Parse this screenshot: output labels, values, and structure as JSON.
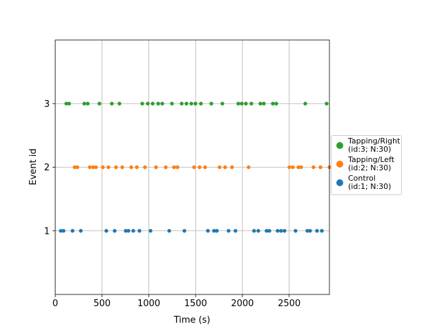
{
  "chart_data": {
    "type": "scatter",
    "xlabel": "Time (s)",
    "ylabel": "Event id",
    "xlim": [
      0,
      2930
    ],
    "xticks": [
      0,
      500,
      1000,
      1500,
      2000,
      2500
    ],
    "ylim": [
      0,
      4
    ],
    "yticks": [
      1,
      2,
      3
    ],
    "grid": true,
    "legend": "right",
    "series": [
      {
        "name": "Tapping/Right\n(id:3; N:30)",
        "color": "#2ca02c",
        "x": [
          118,
          148,
          310,
          347,
          472,
          605,
          686,
          930,
          989,
          1041,
          1100,
          1144,
          1247,
          1351,
          1402,
          1454,
          1498,
          1557,
          1668,
          1786,
          1956,
          1993,
          2037,
          2096,
          2192,
          2229,
          2325,
          2362,
          2672,
          2900
        ],
        "y": [
          3,
          3,
          3,
          3,
          3,
          3,
          3,
          3,
          3,
          3,
          3,
          3,
          3,
          3,
          3,
          3,
          3,
          3,
          3,
          3,
          3,
          3,
          3,
          3,
          3,
          3,
          3,
          3,
          3,
          3
        ]
      },
      {
        "name": "Tapping/Left\n(id:2; N:30)",
        "color": "#ff7f0e",
        "x": [
          207,
          236,
          369,
          406,
          435,
          509,
          568,
          649,
          716,
          812,
          871,
          959,
          1077,
          1181,
          1269,
          1306,
          1483,
          1542,
          1601,
          1756,
          1815,
          1889,
          2066,
          2502,
          2539,
          2598,
          2627,
          2760,
          2834,
          2930
        ],
        "y": [
          2,
          2,
          2,
          2,
          2,
          2,
          2,
          2,
          2,
          2,
          2,
          2,
          2,
          2,
          2,
          2,
          2,
          2,
          2,
          2,
          2,
          2,
          2,
          2,
          2,
          2,
          2,
          2,
          2,
          2
        ]
      },
      {
        "name": "Control\n(id:1; N:30)",
        "color": "#1f77b4",
        "x": [
          59,
          89,
          185,
          273,
          546,
          635,
          753,
          782,
          834,
          900,
          1018,
          1218,
          1380,
          1631,
          1697,
          1727,
          1852,
          1926,
          2125,
          2170,
          2258,
          2288,
          2376,
          2413,
          2450,
          2568,
          2694,
          2723,
          2797,
          2849
        ],
        "y": [
          1,
          1,
          1,
          1,
          1,
          1,
          1,
          1,
          1,
          1,
          1,
          1,
          1,
          1,
          1,
          1,
          1,
          1,
          1,
          1,
          1,
          1,
          1,
          1,
          1,
          1,
          1,
          1,
          1,
          1
        ]
      }
    ]
  }
}
